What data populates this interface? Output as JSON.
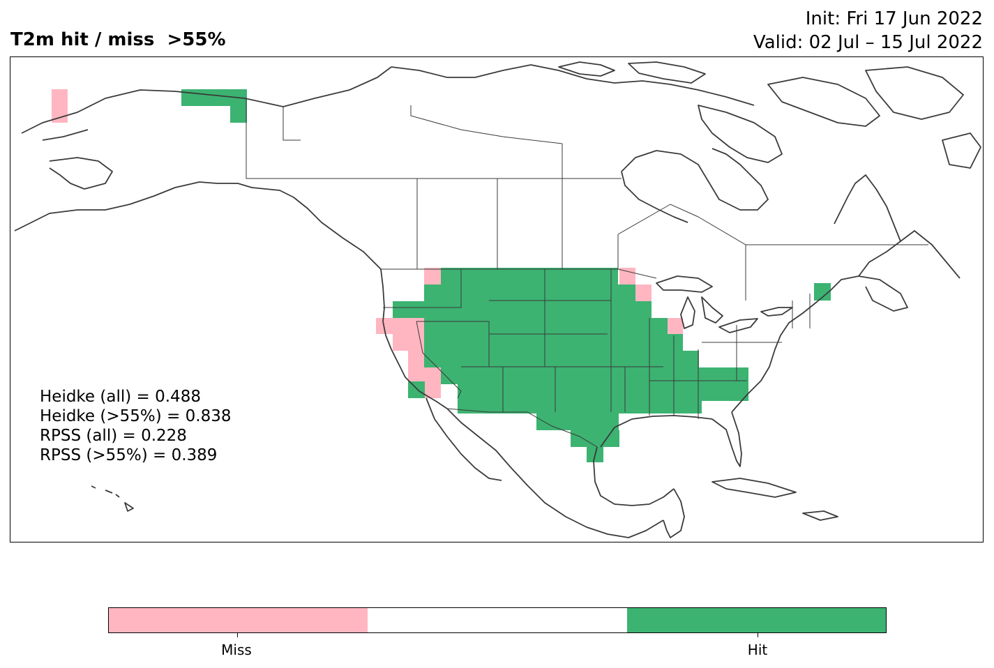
{
  "title": {
    "left": "T2m hit / miss  >55%",
    "init": "Init: Fri 17 Jun 2022",
    "valid": "Valid: 02 Jul – 15 Jul 2022"
  },
  "stats": [
    "Heidke (all) = 0.488",
    "Heidke (>55%) = 0.838",
    "RPSS (all) = 0.228",
    "RPSS (>55%) = 0.389"
  ],
  "colors": {
    "miss": "#FFB6C1",
    "neutral": "#FFFFFF",
    "hit": "#3CB371",
    "coast": "#3a3a3a"
  },
  "legend": {
    "miss_label": "Miss",
    "hit_label": "Hit"
  }
}
